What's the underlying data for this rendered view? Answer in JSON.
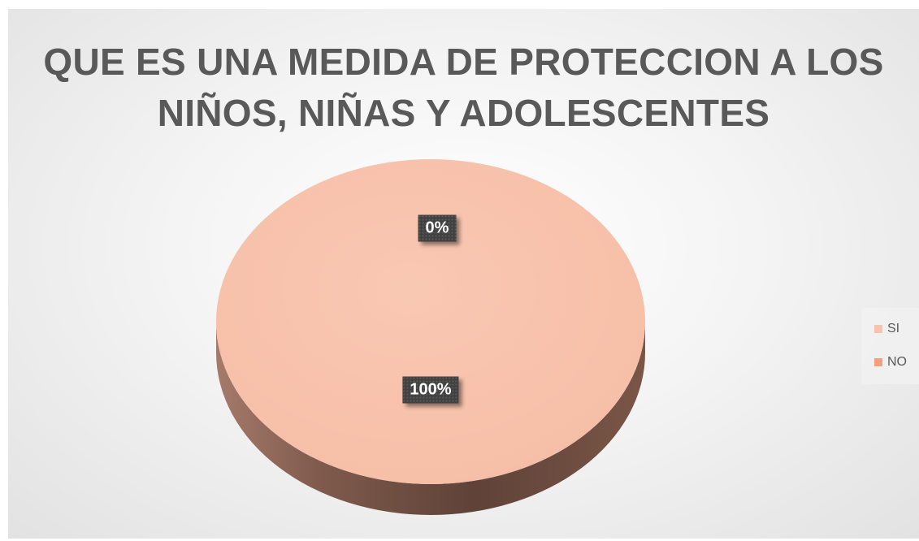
{
  "chart_data": {
    "type": "pie",
    "title_lines": [
      "QUE ES UNA MEDIDA DE PROTECCION A LOS",
      "NIÑOS, NIÑAS Y ADOLESCENTES"
    ],
    "categories": [
      "SI",
      "NO"
    ],
    "values": [
      100,
      0
    ],
    "data_labels": [
      "100%",
      "0%"
    ],
    "legend": {
      "placement": "right",
      "entries": [
        "SI",
        "NO"
      ]
    },
    "colors": {
      "SI": "#f8c3ac",
      "NO": "#f4a07c"
    },
    "style": "3d"
  }
}
